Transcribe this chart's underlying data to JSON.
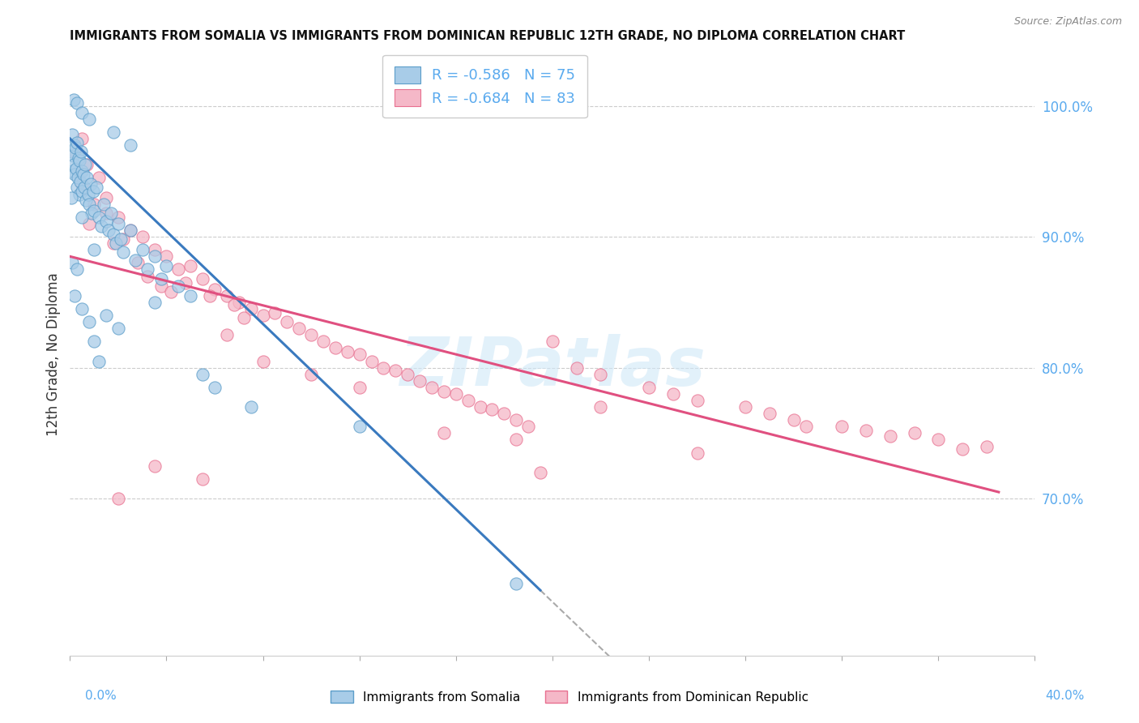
{
  "title": "IMMIGRANTS FROM SOMALIA VS IMMIGRANTS FROM DOMINICAN REPUBLIC 12TH GRADE, NO DIPLOMA CORRELATION CHART",
  "source": "Source: ZipAtlas.com",
  "ylabel": "12th Grade, No Diploma",
  "xlim": [
    0.0,
    40.0
  ],
  "ylim": [
    58.0,
    104.0
  ],
  "ytick_values": [
    70.0,
    80.0,
    90.0,
    100.0
  ],
  "watermark": "ZIPatlas",
  "legend_r1": "R = -0.586   N = 75",
  "legend_r2": "R = -0.684   N = 83",
  "somalia_color": "#a8cce8",
  "somalia_edge": "#5b9dc9",
  "dr_color": "#f5b8c8",
  "dr_edge": "#e87090",
  "trend_somalia_color": "#3a7abf",
  "trend_dr_color": "#e05080",
  "background_color": "#ffffff",
  "grid_color": "#cccccc",
  "somalia_trend_x": [
    0.0,
    19.5
  ],
  "somalia_trend_y": [
    97.5,
    63.0
  ],
  "dr_trend_x": [
    0.0,
    38.5
  ],
  "dr_trend_y": [
    88.5,
    70.5
  ],
  "somalia_points": [
    [
      0.05,
      96.5
    ],
    [
      0.08,
      95.0
    ],
    [
      0.1,
      97.8
    ],
    [
      0.12,
      96.2
    ],
    [
      0.15,
      95.5
    ],
    [
      0.18,
      97.0
    ],
    [
      0.2,
      94.8
    ],
    [
      0.22,
      96.8
    ],
    [
      0.25,
      95.2
    ],
    [
      0.28,
      93.8
    ],
    [
      0.3,
      97.2
    ],
    [
      0.32,
      94.5
    ],
    [
      0.35,
      96.0
    ],
    [
      0.38,
      93.2
    ],
    [
      0.4,
      95.8
    ],
    [
      0.42,
      94.2
    ],
    [
      0.45,
      96.5
    ],
    [
      0.48,
      93.5
    ],
    [
      0.5,
      95.0
    ],
    [
      0.55,
      94.8
    ],
    [
      0.6,
      93.8
    ],
    [
      0.62,
      95.5
    ],
    [
      0.65,
      92.8
    ],
    [
      0.7,
      94.5
    ],
    [
      0.75,
      93.2
    ],
    [
      0.8,
      92.5
    ],
    [
      0.85,
      94.0
    ],
    [
      0.9,
      91.8
    ],
    [
      0.95,
      93.5
    ],
    [
      1.0,
      92.0
    ],
    [
      1.1,
      93.8
    ],
    [
      1.2,
      91.5
    ],
    [
      1.3,
      90.8
    ],
    [
      1.4,
      92.5
    ],
    [
      1.5,
      91.2
    ],
    [
      1.6,
      90.5
    ],
    [
      1.7,
      91.8
    ],
    [
      1.8,
      90.2
    ],
    [
      1.9,
      89.5
    ],
    [
      2.0,
      91.0
    ],
    [
      2.1,
      89.8
    ],
    [
      2.2,
      88.8
    ],
    [
      2.5,
      90.5
    ],
    [
      2.7,
      88.2
    ],
    [
      3.0,
      89.0
    ],
    [
      3.2,
      87.5
    ],
    [
      3.5,
      88.5
    ],
    [
      3.8,
      86.8
    ],
    [
      4.0,
      87.8
    ],
    [
      4.5,
      86.2
    ],
    [
      5.0,
      85.5
    ],
    [
      0.15,
      100.5
    ],
    [
      0.3,
      100.2
    ],
    [
      0.5,
      99.5
    ],
    [
      0.8,
      99.0
    ],
    [
      1.8,
      98.0
    ],
    [
      2.5,
      97.0
    ],
    [
      0.1,
      88.0
    ],
    [
      0.2,
      85.5
    ],
    [
      0.3,
      87.5
    ],
    [
      0.5,
      84.5
    ],
    [
      0.8,
      83.5
    ],
    [
      1.0,
      82.0
    ],
    [
      1.5,
      84.0
    ],
    [
      2.0,
      83.0
    ],
    [
      1.2,
      80.5
    ],
    [
      6.0,
      78.5
    ],
    [
      7.5,
      77.0
    ],
    [
      12.0,
      75.5
    ],
    [
      18.5,
      63.5
    ],
    [
      0.05,
      93.0
    ],
    [
      0.5,
      91.5
    ],
    [
      1.0,
      89.0
    ],
    [
      3.5,
      85.0
    ],
    [
      5.5,
      79.5
    ]
  ],
  "dr_points": [
    [
      0.2,
      96.5
    ],
    [
      0.5,
      94.0
    ],
    [
      0.7,
      95.5
    ],
    [
      1.0,
      92.5
    ],
    [
      1.5,
      93.0
    ],
    [
      2.0,
      91.5
    ],
    [
      2.5,
      90.5
    ],
    [
      1.2,
      94.5
    ],
    [
      0.8,
      91.0
    ],
    [
      1.8,
      89.5
    ],
    [
      3.0,
      90.0
    ],
    [
      3.5,
      89.0
    ],
    [
      4.0,
      88.5
    ],
    [
      4.5,
      87.5
    ],
    [
      3.2,
      87.0
    ],
    [
      2.8,
      88.0
    ],
    [
      5.0,
      87.8
    ],
    [
      5.5,
      86.8
    ],
    [
      6.0,
      86.0
    ],
    [
      4.8,
      86.5
    ],
    [
      6.5,
      85.5
    ],
    [
      7.0,
      85.0
    ],
    [
      7.5,
      84.5
    ],
    [
      8.0,
      84.0
    ],
    [
      6.8,
      84.8
    ],
    [
      5.8,
      85.5
    ],
    [
      3.8,
      86.2
    ],
    [
      2.2,
      89.8
    ],
    [
      1.5,
      91.8
    ],
    [
      9.0,
      83.5
    ],
    [
      9.5,
      83.0
    ],
    [
      10.0,
      82.5
    ],
    [
      10.5,
      82.0
    ],
    [
      11.0,
      81.5
    ],
    [
      8.5,
      84.2
    ],
    [
      7.2,
      83.8
    ],
    [
      4.2,
      85.8
    ],
    [
      12.0,
      81.0
    ],
    [
      12.5,
      80.5
    ],
    [
      13.0,
      80.0
    ],
    [
      11.5,
      81.2
    ],
    [
      6.5,
      82.5
    ],
    [
      14.0,
      79.5
    ],
    [
      14.5,
      79.0
    ],
    [
      15.0,
      78.5
    ],
    [
      13.5,
      79.8
    ],
    [
      8.0,
      80.5
    ],
    [
      16.0,
      78.0
    ],
    [
      16.5,
      77.5
    ],
    [
      17.0,
      77.0
    ],
    [
      15.5,
      78.2
    ],
    [
      10.0,
      79.5
    ],
    [
      18.0,
      76.5
    ],
    [
      18.5,
      76.0
    ],
    [
      19.0,
      75.5
    ],
    [
      17.5,
      76.8
    ],
    [
      12.0,
      78.5
    ],
    [
      20.0,
      82.0
    ],
    [
      22.0,
      79.5
    ],
    [
      24.0,
      78.5
    ],
    [
      21.0,
      80.0
    ],
    [
      15.5,
      75.0
    ],
    [
      26.0,
      77.5
    ],
    [
      28.0,
      77.0
    ],
    [
      25.0,
      78.0
    ],
    [
      18.5,
      74.5
    ],
    [
      30.0,
      76.0
    ],
    [
      32.0,
      75.5
    ],
    [
      29.0,
      76.5
    ],
    [
      22.0,
      77.0
    ],
    [
      35.0,
      75.0
    ],
    [
      36.0,
      74.5
    ],
    [
      33.0,
      75.2
    ],
    [
      26.0,
      73.5
    ],
    [
      38.0,
      74.0
    ],
    [
      37.0,
      73.8
    ],
    [
      34.0,
      74.8
    ],
    [
      30.5,
      75.5
    ],
    [
      0.5,
      97.5
    ],
    [
      2.0,
      70.0
    ],
    [
      5.5,
      71.5
    ],
    [
      3.5,
      72.5
    ],
    [
      19.5,
      72.0
    ]
  ]
}
